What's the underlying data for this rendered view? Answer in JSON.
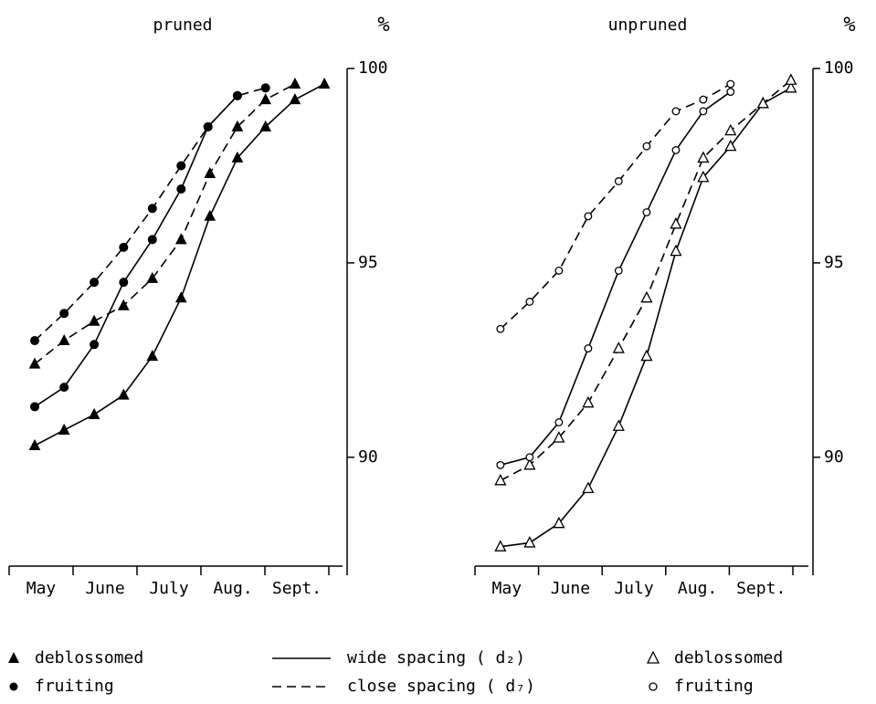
{
  "chart_data": [
    {
      "type": "line",
      "title": "pruned",
      "y_unit": "%",
      "categories": [
        "May",
        "June",
        "July",
        "Aug.",
        "Sept."
      ],
      "xlim": [
        0,
        5
      ],
      "ylim": [
        87.2,
        100
      ],
      "yticks": [
        90,
        95,
        100
      ],
      "series": [
        {
          "marker": "triangle",
          "filled": true,
          "dashed": false,
          "color": "#000000",
          "x": [
            0.4,
            0.86,
            1.33,
            1.79,
            2.24,
            2.69,
            3.14,
            3.57,
            4.01,
            4.47,
            4.93
          ],
          "values": [
            90.3,
            90.7,
            91.1,
            91.6,
            92.6,
            94.1,
            96.2,
            97.7,
            98.5,
            99.2,
            99.6
          ]
        },
        {
          "marker": "triangle",
          "filled": true,
          "dashed": true,
          "color": "#000000",
          "x": [
            0.4,
            0.86,
            1.33,
            1.79,
            2.24,
            2.69,
            3.14,
            3.57,
            4.01,
            4.47
          ],
          "values": [
            92.4,
            93.0,
            93.5,
            93.9,
            94.6,
            95.6,
            97.3,
            98.5,
            99.2,
            99.6
          ]
        },
        {
          "marker": "circle",
          "filled": true,
          "dashed": false,
          "color": "#000000",
          "x": [
            0.4,
            0.86,
            1.33,
            1.79,
            2.24,
            2.69,
            3.11,
            3.57
          ],
          "values": [
            91.3,
            91.8,
            92.9,
            94.5,
            95.6,
            96.9,
            98.5,
            99.3
          ]
        },
        {
          "marker": "circle",
          "filled": true,
          "dashed": true,
          "color": "#000000",
          "x": [
            0.4,
            0.86,
            1.33,
            1.79,
            2.24,
            2.69,
            3.11,
            3.57,
            4.01
          ],
          "values": [
            93.0,
            93.7,
            94.5,
            95.4,
            96.4,
            97.5,
            98.5,
            99.3,
            99.5
          ]
        }
      ]
    },
    {
      "type": "line",
      "title": "unpruned",
      "y_unit": "%",
      "categories": [
        "May",
        "June",
        "July",
        "Aug.",
        "Sept."
      ],
      "xlim": [
        0,
        5
      ],
      "ylim": [
        87.2,
        100
      ],
      "yticks": [
        90,
        95,
        100
      ],
      "series": [
        {
          "marker": "triangle",
          "filled": false,
          "dashed": false,
          "color": "#000000",
          "x": [
            0.4,
            0.86,
            1.32,
            1.78,
            2.26,
            2.7,
            3.16,
            3.59,
            4.02,
            4.53,
            4.97
          ],
          "values": [
            87.7,
            87.8,
            88.3,
            89.2,
            90.8,
            92.6,
            95.3,
            97.2,
            98.0,
            99.1,
            99.5
          ]
        },
        {
          "marker": "triangle",
          "filled": false,
          "dashed": true,
          "color": "#000000",
          "x": [
            0.4,
            0.86,
            1.32,
            1.78,
            2.26,
            2.7,
            3.16,
            3.59,
            4.02,
            4.53,
            4.97
          ],
          "values": [
            89.4,
            89.8,
            90.5,
            91.4,
            92.8,
            94.1,
            96.0,
            97.7,
            98.4,
            99.1,
            99.7
          ]
        },
        {
          "marker": "circle",
          "filled": false,
          "dashed": false,
          "color": "#000000",
          "x": [
            0.4,
            0.86,
            1.32,
            1.78,
            2.26,
            2.7,
            3.16,
            3.59,
            4.02
          ],
          "values": [
            89.8,
            90.0,
            90.9,
            92.8,
            94.8,
            96.3,
            97.9,
            98.9,
            99.4
          ]
        },
        {
          "marker": "circle",
          "filled": false,
          "dashed": true,
          "color": "#000000",
          "x": [
            0.4,
            0.86,
            1.32,
            1.78,
            2.26,
            2.7,
            3.16,
            3.59,
            4.02
          ],
          "values": [
            93.3,
            94.0,
            94.8,
            96.2,
            97.1,
            98.0,
            98.9,
            99.2,
            99.6
          ]
        }
      ]
    }
  ],
  "legend": {
    "pruned_markers": [
      "deblossomed",
      "fruiting"
    ],
    "lines": [
      "wide spacing ( d₂)",
      "close spacing ( d₇)"
    ],
    "unpruned_markers": [
      "deblossomed",
      "fruiting"
    ]
  }
}
